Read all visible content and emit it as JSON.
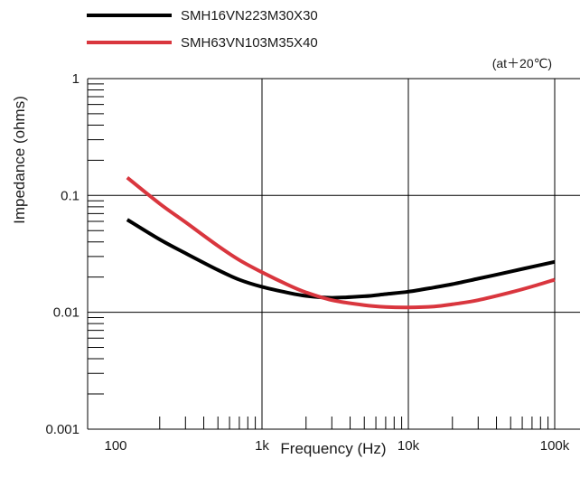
{
  "chart_data": {
    "type": "line",
    "title": "",
    "xlabel": "Frequency (Hz)",
    "ylabel": "Impedance (ohms)",
    "note": "(at＋20℃)",
    "x_scale": "log",
    "y_scale": "log",
    "xlim": [
      100,
      100000
    ],
    "ylim": [
      0.001,
      1
    ],
    "x_ticks": [
      {
        "value": 100,
        "label": "100"
      },
      {
        "value": 1000,
        "label": "1k"
      },
      {
        "value": 10000,
        "label": "10k"
      },
      {
        "value": 100000,
        "label": "100k"
      }
    ],
    "y_ticks": [
      {
        "value": 0.001,
        "label": "0.001"
      },
      {
        "value": 0.01,
        "label": "0.01"
      },
      {
        "value": 0.1,
        "label": "0.1"
      },
      {
        "value": 1,
        "label": "1"
      }
    ],
    "grid": true,
    "legend_position": "top-left",
    "series": [
      {
        "name": "SMH16VN223M30X30",
        "color": "#000000",
        "x": [
          120,
          200,
          300,
          500,
          700,
          1000,
          1500,
          2000,
          3000,
          5000,
          7000,
          10000,
          15000,
          20000,
          30000,
          50000,
          70000,
          100000
        ],
        "y": [
          0.062,
          0.042,
          0.032,
          0.023,
          0.019,
          0.0165,
          0.0147,
          0.0138,
          0.0133,
          0.0137,
          0.0143,
          0.015,
          0.0163,
          0.0174,
          0.0194,
          0.0223,
          0.0245,
          0.027
        ]
      },
      {
        "name": "SMH63VN103M35X40",
        "color": "#d9363e",
        "x": [
          120,
          200,
          300,
          500,
          700,
          1000,
          1500,
          2000,
          3000,
          5000,
          7000,
          10000,
          15000,
          20000,
          30000,
          50000,
          70000,
          100000
        ],
        "y": [
          0.142,
          0.085,
          0.059,
          0.037,
          0.028,
          0.022,
          0.0172,
          0.0148,
          0.0127,
          0.0115,
          0.0111,
          0.011,
          0.0112,
          0.0117,
          0.0127,
          0.0148,
          0.0166,
          0.019
        ]
      }
    ]
  }
}
